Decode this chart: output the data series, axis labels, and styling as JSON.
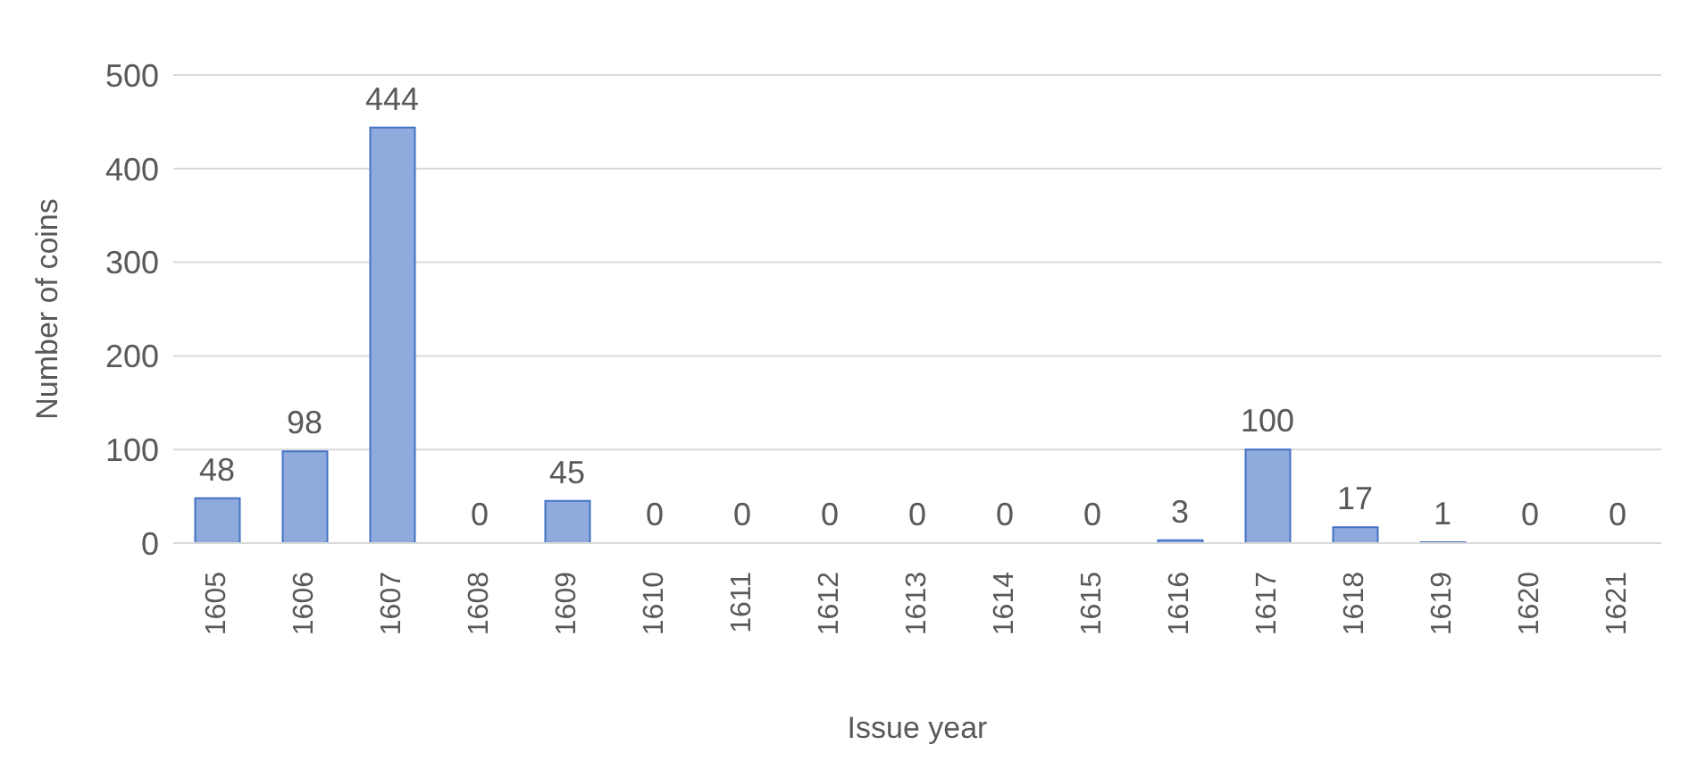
{
  "chart_data": {
    "type": "bar",
    "xlabel": "Issue year",
    "ylabel": "Number of coins",
    "categories": [
      "1605",
      "1606",
      "1607",
      "1608",
      "1609",
      "1610",
      "1611",
      "1612",
      "1613",
      "1614",
      "1615",
      "1616",
      "1617",
      "1618",
      "1619",
      "1620",
      "1621"
    ],
    "values": [
      48,
      98,
      444,
      0,
      45,
      0,
      0,
      0,
      0,
      0,
      0,
      3,
      100,
      17,
      1,
      0,
      0
    ],
    "color": "#8faadc",
    "ylim": [
      0,
      500
    ],
    "yticks": [
      0,
      100,
      200,
      300,
      400,
      500
    ],
    "grid": "y",
    "data_labels": true
  }
}
